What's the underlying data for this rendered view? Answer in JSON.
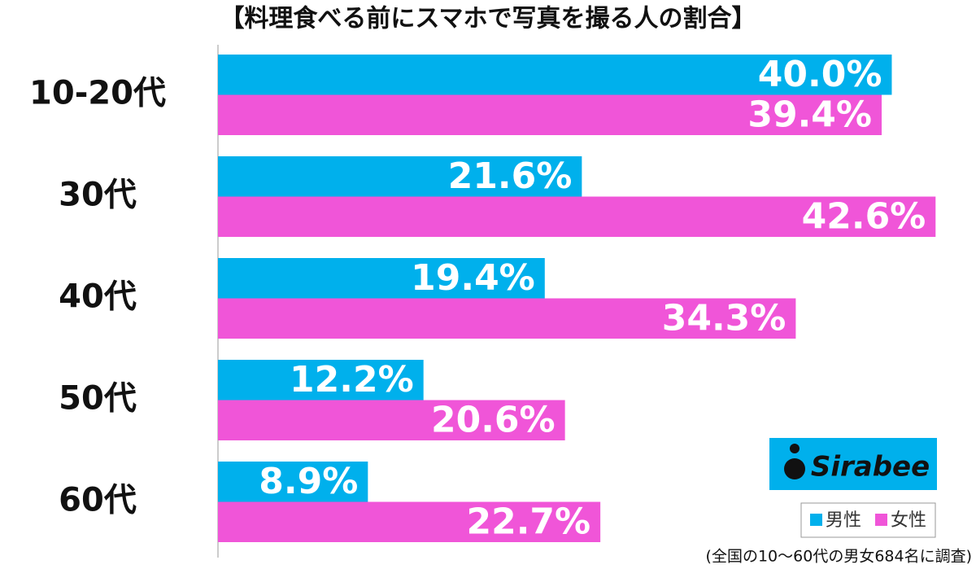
{
  "chart_data": {
    "type": "bar",
    "orientation": "horizontal",
    "title": "【料理食べる前にスマホで写真を撮る人の割合】",
    "categories": [
      "10-20代",
      "30代",
      "40代",
      "50代",
      "60代"
    ],
    "series": [
      {
        "name": "男性",
        "color": "#00b0ec",
        "values": [
          40.0,
          21.6,
          19.4,
          12.2,
          8.9
        ],
        "value_labels": [
          "40.0%",
          "21.6%",
          "19.4%",
          "12.2%",
          "8.9%"
        ]
      },
      {
        "name": "女性",
        "color": "#f055d8",
        "values": [
          39.4,
          42.6,
          34.3,
          20.6,
          22.7
        ],
        "value_labels": [
          "39.4%",
          "42.6%",
          "34.3%",
          "20.6%",
          "22.7%"
        ]
      }
    ],
    "xlim": [
      0,
      45
    ],
    "watermark": "Sirabee",
    "note": "(全国の10〜60代の男女684名に調査)"
  }
}
